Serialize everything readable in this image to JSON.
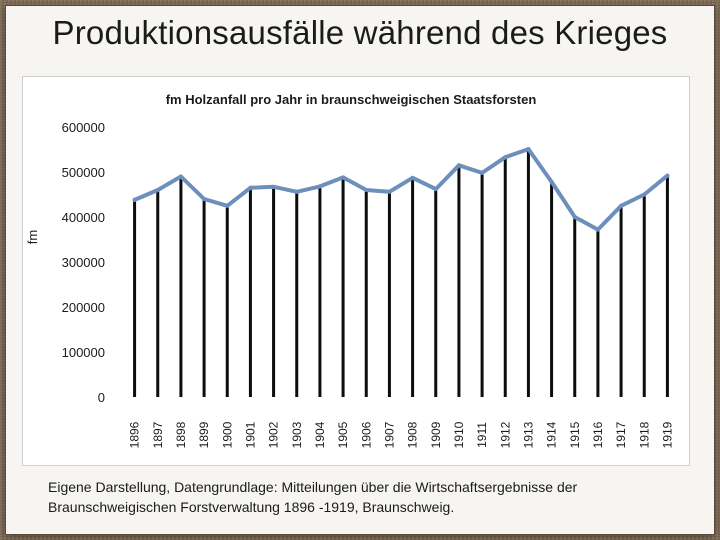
{
  "slide": {
    "title": "Produktionsausfälle während des Krieges",
    "caption": "Eigene Darstellung, Datengrundlage: Mitteilungen über die Wirtschaftsergebnisse der Braunschweigischen Forstverwaltung 1896 -1919, Braunschweig."
  },
  "colors": {
    "line": "#6d8fbb",
    "bar": "#0d0d0d",
    "text": "#1b1b1b"
  },
  "chart_data": {
    "type": "line",
    "title": "fm Holzanfall  pro Jahr in braunschweigischen Staatsforsten",
    "ylabel": "fm",
    "xlabel": "",
    "ylim": [
      0,
      600000
    ],
    "yticks": [
      0,
      100000,
      200000,
      300000,
      400000,
      500000,
      600000
    ],
    "ytick_labels": [
      "0",
      "100000",
      "200000",
      "300000",
      "400000",
      "500000",
      "600000"
    ],
    "grid": false,
    "categories": [
      "1896",
      "1897",
      "1898",
      "1899",
      "1900",
      "1901",
      "1902",
      "1903",
      "1904",
      "1905",
      "1906",
      "1907",
      "1908",
      "1909",
      "1910",
      "1911",
      "1912",
      "1913",
      "1914",
      "1915",
      "1916",
      "1917",
      "1918",
      "1919"
    ],
    "series": [
      {
        "name": "fm Holzanfall",
        "values": [
          438000,
          460000,
          490000,
          440000,
          425000,
          465000,
          467000,
          456000,
          468000,
          488000,
          460000,
          456000,
          487000,
          462000,
          515000,
          498000,
          533000,
          551000,
          478000,
          400000,
          372000,
          425000,
          450000,
          492000
        ]
      }
    ]
  }
}
